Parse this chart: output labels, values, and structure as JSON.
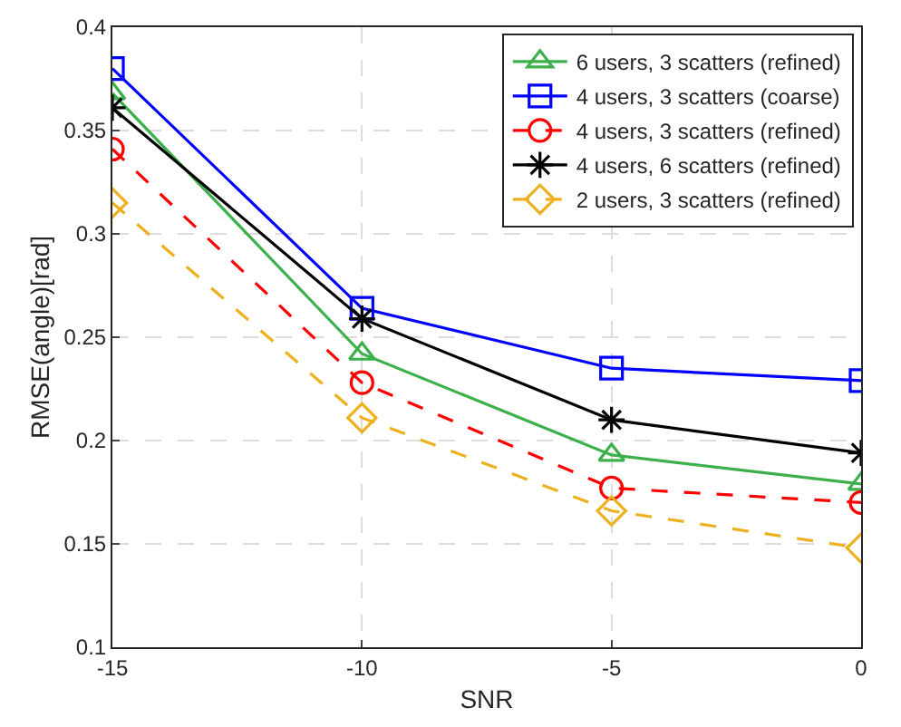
{
  "chart_data": {
    "type": "line",
    "xlabel": "SNR",
    "ylabel": "RMSE(angle)[rad]",
    "x": [
      -15,
      -10,
      -5,
      0
    ],
    "xlim": [
      -15,
      0
    ],
    "xticks": [
      -15,
      -10,
      -5,
      0
    ],
    "ylim": [
      0.1,
      0.4
    ],
    "yticks": [
      0.1,
      0.15,
      0.2,
      0.25,
      0.3,
      0.35,
      0.4
    ],
    "grid": true,
    "legend": "top right",
    "series": [
      {
        "name": "6 users, 3 scatters (refined)",
        "color": "#3cb04a",
        "marker": "triangle",
        "line_style": "solid",
        "values": [
          0.368,
          0.242,
          0.193,
          0.179
        ]
      },
      {
        "name": "4 users, 3 scatters (coarse)",
        "color": "#0000ff",
        "marker": "square",
        "line_style": "solid",
        "values": [
          0.38,
          0.264,
          0.235,
          0.229
        ]
      },
      {
        "name": "4 users, 3 scatters (refined)",
        "color": "#ff0000",
        "marker": "circle",
        "line_style": "dashed",
        "values": [
          0.341,
          0.228,
          0.177,
          0.17
        ]
      },
      {
        "name": "4 users, 6 scatters (refined)",
        "color": "#000000",
        "marker": "cross",
        "line_style": "solid",
        "values": [
          0.361,
          0.259,
          0.21,
          0.194
        ]
      },
      {
        "name": "2 users, 3 scatters (refined)",
        "color": "#edb120",
        "marker": "diamond",
        "line_style": "dashed",
        "values": [
          0.315,
          0.211,
          0.166,
          0.148
        ]
      }
    ]
  }
}
